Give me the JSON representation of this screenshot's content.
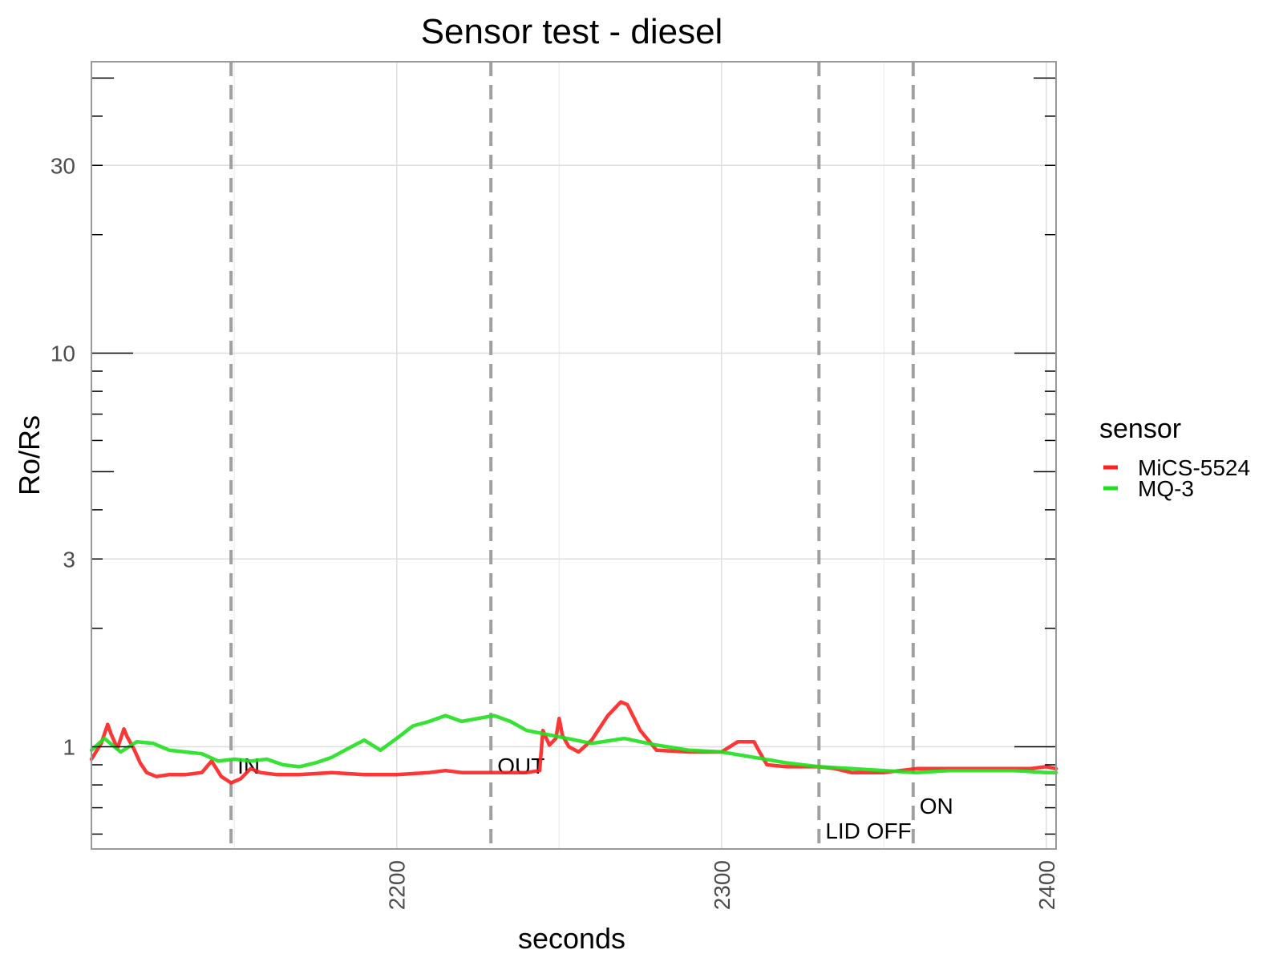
{
  "chart_data": {
    "type": "line",
    "title": "Sensor test - diesel",
    "xlabel": "seconds",
    "ylabel": "Ro/Rs",
    "xlim": [
      2106,
      2403
    ],
    "ylim": [
      0.55,
      55
    ],
    "y_scale": "log10",
    "x_ticks": [
      2200,
      2300,
      2400
    ],
    "y_ticks": [
      1,
      3,
      10,
      30
    ],
    "grid": true,
    "legend": {
      "title": "sensor",
      "position": "right",
      "entries": [
        {
          "name": "MiCS-5524",
          "color": "#ff2020"
        },
        {
          "name": "MQ-3",
          "color": "#1ee01e"
        }
      ]
    },
    "events": [
      {
        "x": 2149,
        "label": "IN"
      },
      {
        "x": 2229,
        "label": "OUT"
      },
      {
        "x": 2330,
        "label": "LID OFF"
      },
      {
        "x": 2359,
        "label": "ON"
      }
    ],
    "series": [
      {
        "name": "MiCS-5524",
        "color": "#ff2020",
        "x": [
          2106,
          2109,
          2111,
          2112,
          2114,
          2116,
          2117,
          2119,
          2121,
          2123,
          2126,
          2130,
          2135,
          2140,
          2143,
          2146,
          2149,
          2152,
          2155,
          2158,
          2163,
          2170,
          2180,
          2190,
          2200,
          2210,
          2215,
          2220,
          2230,
          2240,
          2244,
          2245,
          2247,
          2249,
          2250,
          2251,
          2253,
          2256,
          2260,
          2265,
          2269,
          2271,
          2275,
          2280,
          2290,
          2300,
          2305,
          2310,
          2312,
          2314,
          2320,
          2330,
          2335,
          2340,
          2350,
          2360,
          2370,
          2380,
          2390,
          2395,
          2400,
          2403
        ],
        "y": [
          0.93,
          1.02,
          1.14,
          1.08,
          0.99,
          1.11,
          1.06,
          0.99,
          0.91,
          0.86,
          0.84,
          0.85,
          0.85,
          0.86,
          0.92,
          0.84,
          0.81,
          0.83,
          0.88,
          0.86,
          0.85,
          0.85,
          0.86,
          0.85,
          0.85,
          0.86,
          0.87,
          0.86,
          0.86,
          0.86,
          0.87,
          1.1,
          1.01,
          1.05,
          1.18,
          1.07,
          1.0,
          0.97,
          1.04,
          1.2,
          1.3,
          1.28,
          1.1,
          0.98,
          0.97,
          0.97,
          1.03,
          1.03,
          0.96,
          0.9,
          0.89,
          0.89,
          0.88,
          0.86,
          0.86,
          0.88,
          0.88,
          0.88,
          0.88,
          0.88,
          0.89,
          0.88
        ]
      },
      {
        "name": "MQ-3",
        "color": "#1ee01e",
        "x": [
          2106,
          2110,
          2115,
          2120,
          2125,
          2130,
          2135,
          2140,
          2145,
          2150,
          2155,
          2160,
          2165,
          2170,
          2175,
          2180,
          2185,
          2190,
          2195,
          2200,
          2205,
          2210,
          2215,
          2220,
          2225,
          2230,
          2235,
          2240,
          2250,
          2260,
          2270,
          2280,
          2290,
          2300,
          2310,
          2320,
          2330,
          2340,
          2350,
          2360,
          2370,
          2380,
          2390,
          2400,
          2403
        ],
        "y": [
          0.98,
          1.05,
          0.97,
          1.03,
          1.02,
          0.98,
          0.97,
          0.96,
          0.92,
          0.93,
          0.92,
          0.93,
          0.9,
          0.89,
          0.91,
          0.94,
          0.99,
          1.04,
          0.98,
          1.05,
          1.13,
          1.16,
          1.2,
          1.16,
          1.18,
          1.2,
          1.16,
          1.1,
          1.06,
          1.02,
          1.05,
          1.01,
          0.98,
          0.97,
          0.94,
          0.91,
          0.89,
          0.88,
          0.87,
          0.86,
          0.87,
          0.87,
          0.87,
          0.86,
          0.86
        ]
      }
    ]
  }
}
